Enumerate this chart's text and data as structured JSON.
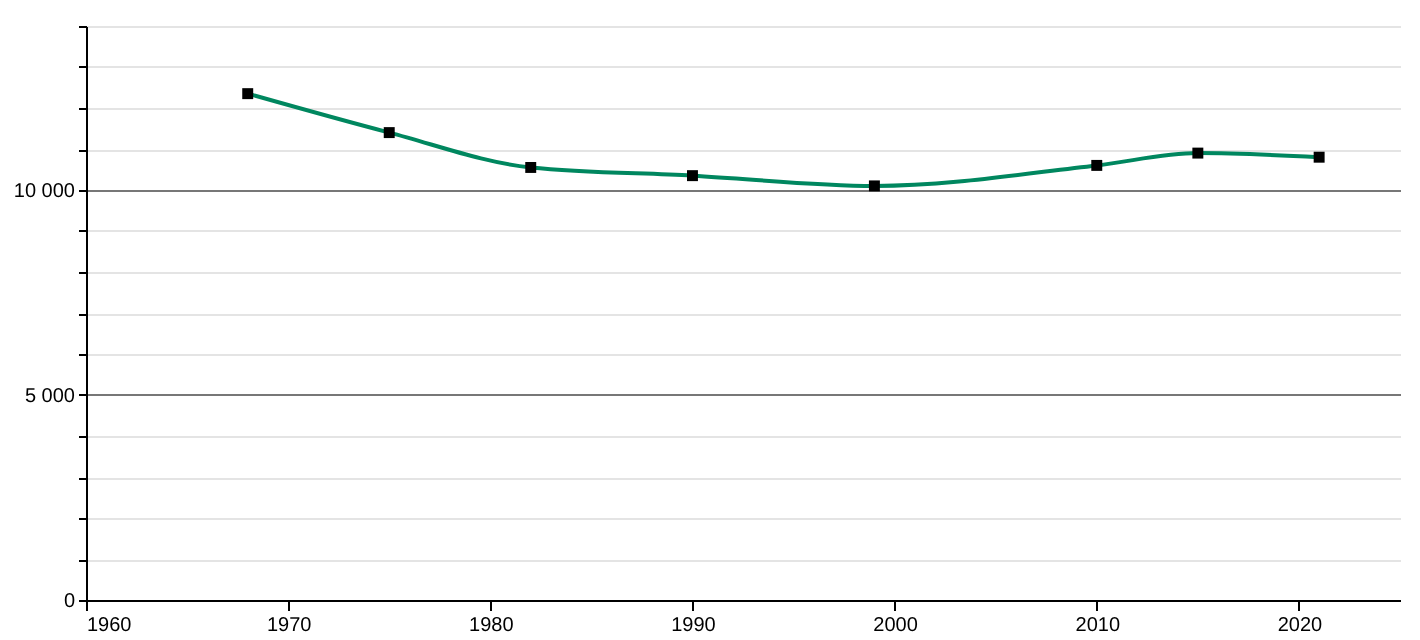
{
  "chart_data": {
    "type": "line",
    "x": [
      1968,
      1975,
      1982,
      1990,
      1999,
      2010,
      2015,
      2021
    ],
    "series": [
      {
        "color": "#00875f",
        "values": [
          12350,
          11400,
          10550,
          10350,
          10100,
          10600,
          10900,
          10800
        ]
      }
    ],
    "xlim": [
      1960,
      2025
    ],
    "xticks": [
      1960,
      1970,
      1980,
      1990,
      2000,
      2010,
      2020
    ],
    "ylim": [
      0,
      14000
    ],
    "yticks": [
      {
        "value": 0,
        "label": "0"
      },
      {
        "value": 1000,
        "label": null
      },
      {
        "value": 2000,
        "label": null
      },
      {
        "value": 3000,
        "label": null
      },
      {
        "value": 4000,
        "label": null
      },
      {
        "value": 5000,
        "label": "5 000"
      },
      {
        "value": 6000,
        "label": null
      },
      {
        "value": 7000,
        "label": null
      },
      {
        "value": 8000,
        "label": null
      },
      {
        "value": 9000,
        "label": null
      },
      {
        "value": 10000,
        "label": "10 000"
      },
      {
        "value": 11000,
        "label": null
      },
      {
        "value": 12000,
        "label": null
      },
      {
        "value": 13000,
        "label": null
      },
      {
        "value": 14000,
        "label": null
      }
    ],
    "grid": "y",
    "marker": "square",
    "line_style": "solid",
    "legend": false
  }
}
